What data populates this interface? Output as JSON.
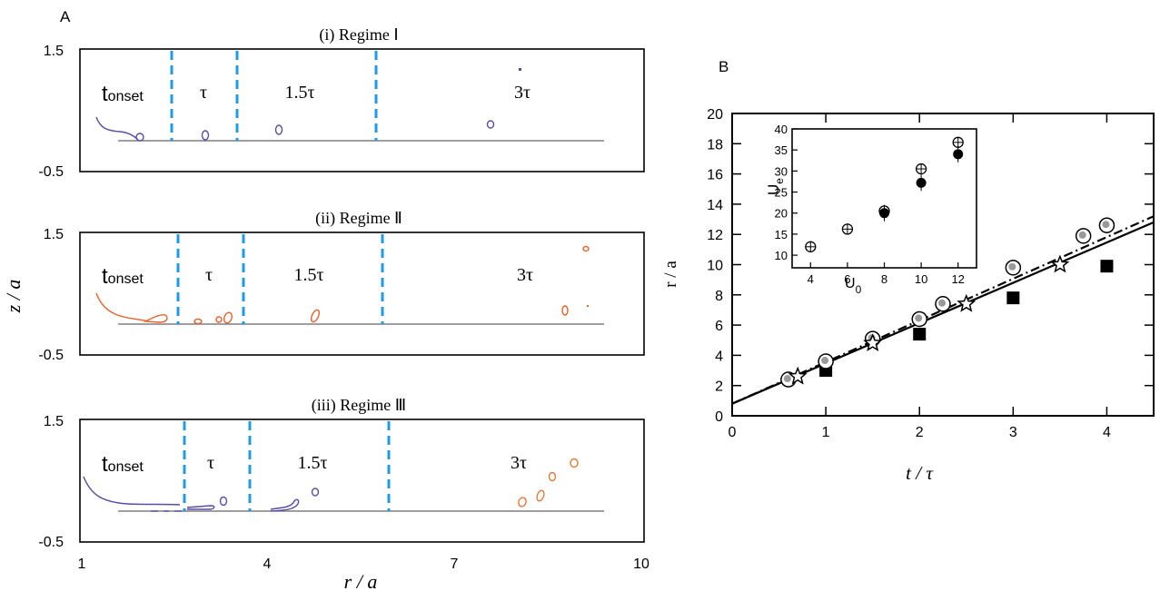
{
  "panel_a": {
    "label": "A",
    "xlabel": "r / a",
    "ylabel": "z / a",
    "x_ticks": [
      "1",
      "4",
      "7",
      "10"
    ],
    "y_ticks": [
      "1.5",
      "-0.5"
    ],
    "stage_labels": [
      "τ",
      "1.5τ",
      "3τ"
    ],
    "onset_label": {
      "main": "t",
      "sub": "onset"
    },
    "regimes": [
      {
        "title": "(i) Regime Ⅰ",
        "color": "#5b4aa6"
      },
      {
        "title": "(ii) Regime Ⅱ",
        "color": "#e8602c"
      },
      {
        "title": "(iii) Regime Ⅲ",
        "color": "#5b4aa6"
      }
    ],
    "divider_color": "#1e9be6"
  },
  "panel_b": {
    "label": "B",
    "xlabel": "t / τ",
    "ylabel": "r / a",
    "x_ticks": [
      "0",
      "1",
      "2",
      "3",
      "4"
    ],
    "y_ticks": [
      "0",
      "2",
      "4",
      "6",
      "8",
      "10",
      "12",
      "14",
      "16",
      "18",
      "20"
    ],
    "inset": {
      "xlabel_main": "U",
      "xlabel_sub": "0",
      "ylabel_main": "U",
      "ylabel_sub": "e",
      "x_ticks": [
        "4",
        "6",
        "8",
        "10",
        "12"
      ],
      "y_ticks": [
        "10",
        "15",
        "20",
        "25",
        "30",
        "35",
        "40"
      ]
    }
  },
  "chart_data": [
    {
      "type": "line",
      "title": "(i) Regime Ⅰ",
      "xlabel": "r / a",
      "ylabel": "z / a",
      "xlim": [
        1,
        10
      ],
      "ylim": [
        -0.5,
        1.5
      ],
      "stages": [
        "t_onset",
        "τ",
        "1.5τ",
        "3τ"
      ]
    },
    {
      "type": "line",
      "title": "(ii) Regime Ⅱ",
      "xlabel": "r / a",
      "ylabel": "z / a",
      "xlim": [
        1,
        10
      ],
      "ylim": [
        -0.5,
        1.5
      ],
      "stages": [
        "t_onset",
        "τ",
        "1.5τ",
        "3τ"
      ]
    },
    {
      "type": "line",
      "title": "(iii) Regime Ⅲ",
      "xlabel": "r / a",
      "ylabel": "z / a",
      "xlim": [
        1,
        10
      ],
      "ylim": [
        -0.5,
        1.5
      ],
      "stages": [
        "t_onset",
        "τ",
        "1.5τ",
        "3τ"
      ]
    },
    {
      "type": "scatter",
      "xlabel": "t / τ",
      "ylabel": "r / a",
      "xlim": [
        0,
        4.5
      ],
      "ylim": [
        0,
        20
      ],
      "series": [
        {
          "marker": "filled-square",
          "x": [
            1,
            2,
            3,
            4
          ],
          "y": [
            3.0,
            5.4,
            7.8,
            9.9
          ]
        },
        {
          "marker": "open-circle",
          "x": [
            0.6,
            1.0,
            1.5,
            2.0,
            2.25,
            3.0,
            3.75,
            4.0
          ],
          "y": [
            2.4,
            3.6,
            5.1,
            6.4,
            7.4,
            9.8,
            11.9,
            12.6
          ]
        },
        {
          "marker": "star",
          "x": [
            0.7,
            1.5,
            2.5,
            3.5
          ],
          "y": [
            2.6,
            4.8,
            7.4,
            10.0
          ]
        }
      ],
      "fit_lines": [
        {
          "style": "solid",
          "x": [
            0,
            4.5
          ],
          "y": [
            0.8,
            12.8
          ]
        },
        {
          "style": "dash-dot",
          "x": [
            0,
            4.5
          ],
          "y": [
            0.8,
            13.2
          ]
        }
      ]
    },
    {
      "type": "scatter",
      "xlabel": "U0",
      "ylabel": "Ue",
      "xlim": [
        3,
        13
      ],
      "ylim": [
        7,
        40
      ],
      "series": [
        {
          "marker": "open-circle",
          "x": [
            4,
            6,
            8,
            10,
            12
          ],
          "y": [
            12,
            16.2,
            20.5,
            30.5,
            36.8
          ]
        },
        {
          "marker": "filled-circle",
          "x": [
            8,
            10,
            12
          ],
          "y": [
            20.0,
            27.2,
            34.0
          ]
        }
      ]
    }
  ]
}
